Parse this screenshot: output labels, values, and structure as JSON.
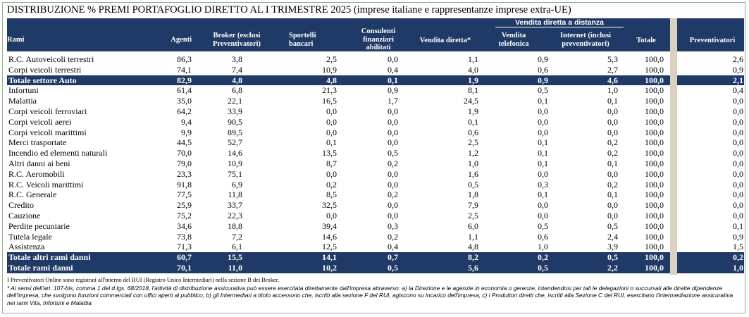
{
  "title": "DISTRIBUZIONE % PREMI PORTAFOGLIO DIRETTO AL I TRIMESTRE 2025 (imprese italiane e rappresentanze imprese extra-UE)",
  "header": {
    "group_label": "Vendita diretta a distanza",
    "columns": [
      "Rami",
      "Agenti",
      "Broker (esclusi Preventivatori)",
      "Sportelli bancari",
      "Consulenti finanziari abilitati",
      "Vendita diretta*",
      "Vendita telefonica",
      "Internet (inclusi preventivatori)",
      "Totale",
      "Preventivatori"
    ]
  },
  "rows": [
    {
      "name": "R.C. Autoveicoli terrestri",
      "v": [
        "86,3",
        "3,8",
        "2,5",
        "0,0",
        "1,1",
        "0,9",
        "5,3",
        "100,0",
        "2,6"
      ],
      "total": false
    },
    {
      "name": "Corpi veicoli terrestri",
      "v": [
        "74,1",
        "7,4",
        "10,9",
        "0,4",
        "4,0",
        "0,6",
        "2,7",
        "100,0",
        "0,9"
      ],
      "total": false
    },
    {
      "name": "Totale settore Auto",
      "v": [
        "82,9",
        "4,8",
        "4,8",
        "0,1",
        "1,9",
        "0,9",
        "4,6",
        "100,0",
        "2,1"
      ],
      "total": true
    },
    {
      "name": "Infortuni",
      "v": [
        "61,4",
        "6,8",
        "21,3",
        "0,9",
        "8,1",
        "0,5",
        "1,0",
        "100,0",
        "0,4"
      ],
      "total": false
    },
    {
      "name": "Malattia",
      "v": [
        "35,0",
        "22,1",
        "16,5",
        "1,7",
        "24,5",
        "0,1",
        "0,1",
        "100,0",
        "0,0"
      ],
      "total": false
    },
    {
      "name": "Corpi veicoli ferroviari",
      "v": [
        "64,2",
        "33,9",
        "0,0",
        "0,0",
        "1,9",
        "0,0",
        "0,0",
        "100,0",
        "0,0"
      ],
      "total": false
    },
    {
      "name": "Corpi veicoli aerei",
      "v": [
        "9,4",
        "90,5",
        "0,0",
        "0,0",
        "0,1",
        "0,0",
        "0,0",
        "100,0",
        "0,0"
      ],
      "total": false
    },
    {
      "name": "Corpi veicoli marittimi",
      "v": [
        "9,9",
        "89,5",
        "0,0",
        "0,0",
        "0,6",
        "0,0",
        "0,0",
        "100,0",
        "0,0"
      ],
      "total": false
    },
    {
      "name": "Merci trasportate",
      "v": [
        "44,5",
        "52,7",
        "0,1",
        "0,0",
        "2,5",
        "0,1",
        "0,2",
        "100,0",
        "0,0"
      ],
      "total": false
    },
    {
      "name": "Incendio ed elementi naturali",
      "v": [
        "70,0",
        "14,6",
        "13,5",
        "0,5",
        "1,2",
        "0,1",
        "0,2",
        "100,0",
        "0,0"
      ],
      "total": false
    },
    {
      "name": "Altri danni ai beni",
      "v": [
        "79,0",
        "10,9",
        "8,7",
        "0,2",
        "1,0",
        "0,1",
        "0,1",
        "100,0",
        "0,0"
      ],
      "total": false
    },
    {
      "name": "R.C. Aeromobili",
      "v": [
        "23,3",
        "75,1",
        "0,0",
        "0,0",
        "1,6",
        "0,0",
        "0,0",
        "100,0",
        "0,0"
      ],
      "total": false
    },
    {
      "name": "R.C. Veicoli marittimi",
      "v": [
        "91,8",
        "6,9",
        "0,2",
        "0,0",
        "0,5",
        "0,3",
        "0,2",
        "100,0",
        "0,0"
      ],
      "total": false
    },
    {
      "name": "R.C. Generale",
      "v": [
        "77,5",
        "11,8",
        "8,5",
        "0,2",
        "1,8",
        "0,1",
        "0,1",
        "100,0",
        "0,0"
      ],
      "total": false
    },
    {
      "name": "Credito",
      "v": [
        "25,9",
        "33,7",
        "32,5",
        "0,0",
        "7,9",
        "0,0",
        "0,0",
        "100,0",
        "0,0"
      ],
      "total": false
    },
    {
      "name": "Cauzione",
      "v": [
        "75,2",
        "22,3",
        "0,0",
        "0,0",
        "2,5",
        "0,0",
        "0,0",
        "100,0",
        "0,0"
      ],
      "total": false
    },
    {
      "name": "Perdite pecuniarie",
      "v": [
        "34,6",
        "18,8",
        "39,4",
        "0,3",
        "6,0",
        "0,5",
        "0,5",
        "100,0",
        "0,1"
      ],
      "total": false
    },
    {
      "name": "Tutela legale",
      "v": [
        "73,8",
        "7,2",
        "14,6",
        "0,2",
        "1,1",
        "0,6",
        "2,4",
        "100,0",
        "0,9"
      ],
      "total": false
    },
    {
      "name": "Assistenza",
      "v": [
        "71,3",
        "6,1",
        "12,5",
        "0,4",
        "4,8",
        "1,0",
        "3,9",
        "100,0",
        "1,5"
      ],
      "total": false
    },
    {
      "name": "Totale altri rami danni",
      "v": [
        "60,7",
        "15,5",
        "14,1",
        "0,7",
        "8,2",
        "0,2",
        "0,5",
        "100,0",
        "0,2"
      ],
      "total": true
    },
    {
      "name": "Totale rami danni",
      "v": [
        "70,1",
        "11,0",
        "10,2",
        "0,5",
        "5,6",
        "0,5",
        "2,2",
        "100,0",
        "1,0"
      ],
      "total": true
    }
  ],
  "notes": {
    "n1": "I Preventivatori Online sono registrati all'interno del RUI (Registro Unico Intermediari) nella sezione B dei Broker.",
    "n2": "* Ai sensi dell'art. 107-bis, comma 1 del d.lgs. 68/2018, l'attività di distribuzione assicurativa può essere esercitata direttamente dall'impresa attraverso: a) la Direzione e le agenzie in economia o gerenze, intendendosi per tali le delegazioni o succursali alle dirette dipendenze dell'impresa, che svolgono funzioni commerciali con uffici aperti al pubblico; b) gli Intermediari a titolo accessorio che, iscritti alla sezione F del RUI, agiscono su incarico dell'impresa; c) i Produttori diretti che, iscritti alla Sezione C del RUI, esercitano l'intermediazione assicurativa nei rami Vita, Infortuni e Malattia"
  }
}
